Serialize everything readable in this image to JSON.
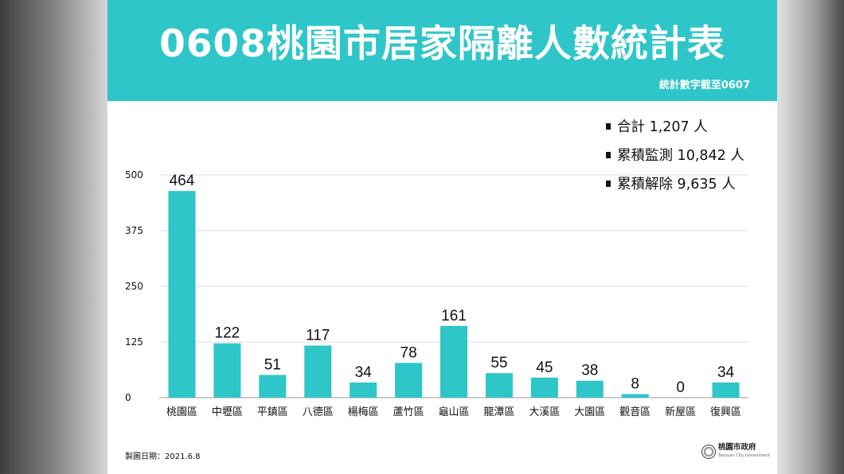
{
  "header": {
    "title": "0608桃園市居家隔離人數統計表",
    "subtitle": "統計數字截至0607"
  },
  "summary": [
    {
      "text": "合計 1,207 人"
    },
    {
      "text": "累積監測 10,842 人"
    },
    {
      "text": "累積解除 9,635 人"
    }
  ],
  "footer": {
    "date": "製圖日期：2021.6.8",
    "logo_name": "桃園市政府",
    "logo_en": "Taoyuan City Government"
  },
  "colors": {
    "banner": "#2ec6c8",
    "bar": "#2ec6c8"
  },
  "chart_data": {
    "type": "bar",
    "categories": [
      "桃園區",
      "中壢區",
      "平鎮區",
      "八德區",
      "楊梅區",
      "蘆竹區",
      "龜山區",
      "龍潭區",
      "大溪區",
      "大園區",
      "觀音區",
      "新屋區",
      "復興區"
    ],
    "values": [
      464,
      122,
      51,
      117,
      34,
      78,
      161,
      55,
      45,
      38,
      8,
      0,
      34
    ],
    "yticks": [
      0,
      125,
      250,
      375,
      500
    ],
    "ylim": [
      0,
      500
    ],
    "grid": true,
    "data_labels": true
  }
}
